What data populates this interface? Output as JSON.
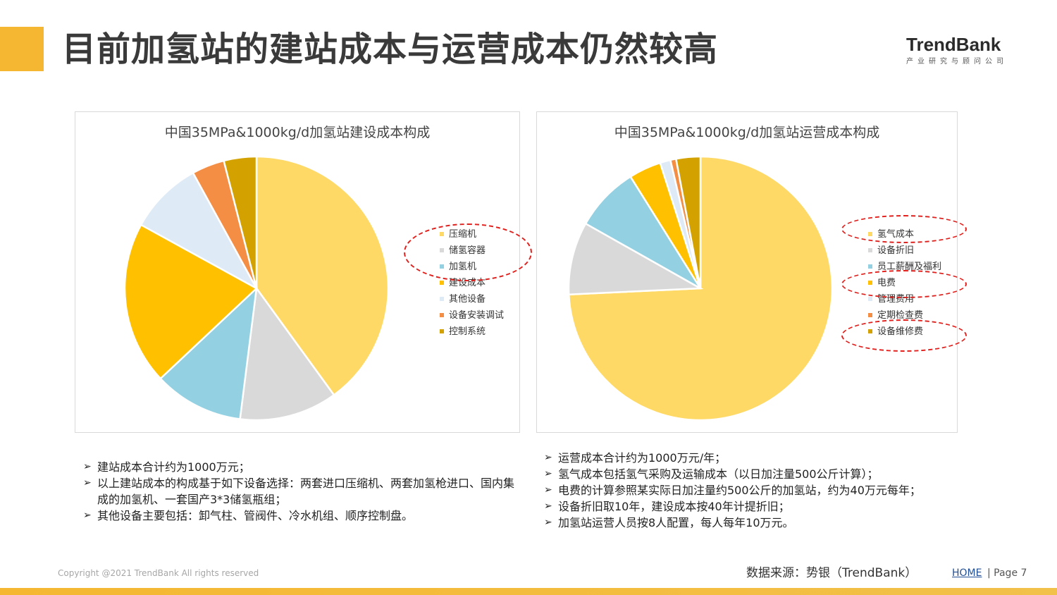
{
  "header": {
    "title": "目前加氢站的建站成本与运营成本仍然较高",
    "logo_name": "TrendBank",
    "logo_sub": "产业研究与顾问公司",
    "accent_color": "#F5B731"
  },
  "chart_data": [
    {
      "type": "pie",
      "title": "中国35MPa&1000kg/d加氢站建设成本构成",
      "categories": [
        "压缩机",
        "储氢容器",
        "加氢机",
        "建设成本",
        "其他设备",
        "设备安装调试",
        "控制系统"
      ],
      "values": [
        40,
        12,
        11,
        20,
        9,
        4,
        4
      ],
      "colors": [
        "#FFD966",
        "#D9D9D9",
        "#92D0E2",
        "#FFC000",
        "#DEEBF7",
        "#F58E45",
        "#D4A200"
      ],
      "legend_position": "right",
      "highlighted": [
        "压缩机",
        "储氢容器",
        "加氢机"
      ]
    },
    {
      "type": "pie",
      "title": "中国35MPa&1000kg/d加氢站运营成本构成",
      "categories": [
        "氢气成本",
        "设备折旧",
        "员工薪酬及福利",
        "电费",
        "管理费用",
        "定期检查费",
        "设备维修费"
      ],
      "values": [
        75,
        9,
        8,
        4,
        1.3,
        0.7,
        3
      ],
      "colors": [
        "#FFD966",
        "#D9D9D9",
        "#92D0E2",
        "#FFC000",
        "#DEEBF7",
        "#F58E45",
        "#D4A200"
      ],
      "legend_position": "right",
      "highlighted": [
        "氢气成本",
        "电费",
        "设备维修费"
      ]
    }
  ],
  "notes_left": [
    "建站成本合计约为1000万元；",
    "以上建站成本的构成基于如下设备选择：两套进口压缩机、两套加氢枪进口、国内集成的加氢机、一套国产3*3储氢瓶组；",
    "其他设备主要包括：卸气柱、管阀件、冷水机组、顺序控制盘。"
  ],
  "notes_right": [
    "运营成本合计约为1000万元/年；",
    "氢气成本包括氢气采购及运输成本（以日加注量500公斤计算）；",
    "电费的计算参照某实际日加注量约500公斤的加氢站，约为40万元每年；",
    "设备折旧取10年，建设成本按40年计提折旧；",
    "加氢站运营人员按8人配置，每人每年10万元。"
  ],
  "note_bullet": "➢",
  "footer": {
    "copyright": "Copyright @2021 TrendBank All rights reserved",
    "source": "数据来源：势银（TrendBank）",
    "home_label": "HOME",
    "page_label": "| Page  7"
  }
}
